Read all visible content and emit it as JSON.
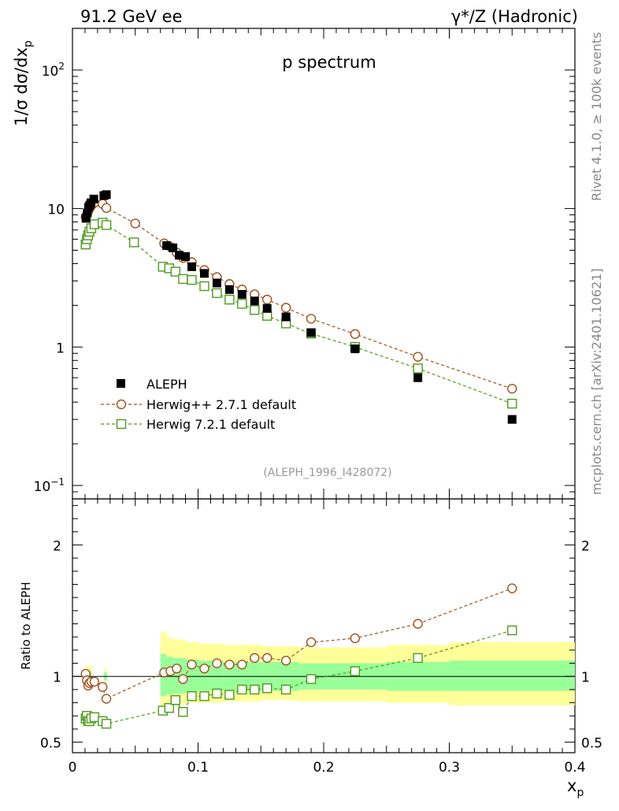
{
  "header": {
    "left": "91.2 GeV ee",
    "right": "γ*/Z (Hadronic)"
  },
  "side_texts": {
    "rivet": "Rivet 4.1.0, ≥ 100k events",
    "mcplots": "mcplots.cern.ch [arXiv:2401.10621]"
  },
  "chart_data": [
    {
      "type": "scatter",
      "title": "p spectrum",
      "xlabel": "x_p",
      "ylabel": "1/σ  dσ/dx_p",
      "yscale": "log",
      "xlim": [
        0,
        0.4
      ],
      "ylim": [
        0.08,
        200
      ],
      "y_tick_labels": [
        "10^-1",
        "1",
        "10",
        "10^2"
      ],
      "watermark": "(ALEPH_1996_I428072)",
      "legend_position": "lower-left",
      "series": [
        {
          "name": "ALEPH",
          "marker": "filled-square",
          "color": "#000000",
          "x": [
            0.0108,
            0.0118,
            0.0128,
            0.0138,
            0.0148,
            0.017,
            0.025,
            0.027,
            0.075,
            0.08,
            0.085,
            0.09,
            0.095,
            0.105,
            0.115,
            0.125,
            0.135,
            0.145,
            0.155,
            0.17,
            0.19,
            0.225,
            0.275,
            0.35
          ],
          "y": [
            8.5,
            9.3,
            10.2,
            10.6,
            11.0,
            11.7,
            12.4,
            12.6,
            5.4,
            5.2,
            4.6,
            4.5,
            3.8,
            3.4,
            2.9,
            2.6,
            2.4,
            2.15,
            1.9,
            1.65,
            1.27,
            0.97,
            0.6,
            0.3
          ]
        },
        {
          "name": "Herwig++ 2.7.1 default",
          "marker": "open-circle",
          "color": "#a0521a",
          "x": [
            0.0105,
            0.0115,
            0.0125,
            0.0135,
            0.015,
            0.0175,
            0.024,
            0.027,
            0.05,
            0.073,
            0.078,
            0.083,
            0.088,
            0.095,
            0.105,
            0.115,
            0.125,
            0.135,
            0.145,
            0.155,
            0.17,
            0.19,
            0.225,
            0.275,
            0.35
          ],
          "y": [
            8.7,
            9.0,
            9.5,
            10.0,
            10.5,
            11.0,
            10.8,
            10.1,
            7.8,
            5.6,
            5.3,
            4.8,
            4.4,
            4.1,
            3.6,
            3.2,
            2.85,
            2.6,
            2.4,
            2.2,
            1.92,
            1.6,
            1.24,
            0.85,
            0.5
          ]
        },
        {
          "name": "Herwig 7.2.1 default",
          "marker": "open-square",
          "color": "#4d9a1a",
          "x": [
            0.0105,
            0.0115,
            0.0125,
            0.0135,
            0.015,
            0.0175,
            0.024,
            0.027,
            0.049,
            0.072,
            0.077,
            0.082,
            0.088,
            0.095,
            0.105,
            0.115,
            0.125,
            0.135,
            0.145,
            0.155,
            0.17,
            0.19,
            0.225,
            0.275,
            0.35
          ],
          "y": [
            5.5,
            6.0,
            6.4,
            6.8,
            7.2,
            7.7,
            7.9,
            7.6,
            5.7,
            3.8,
            3.7,
            3.5,
            3.1,
            3.05,
            2.75,
            2.45,
            2.2,
            2.05,
            1.85,
            1.68,
            1.48,
            1.25,
            1.0,
            0.7,
            0.39
          ]
        }
      ]
    },
    {
      "type": "scatter",
      "title": "",
      "xlabel": "x_p",
      "ylabel": "Ratio to ALEPH",
      "xlim": [
        0,
        0.4
      ],
      "ylim": [
        0.42,
        2.35
      ],
      "x_tick_labels": [
        "0",
        "0.1",
        "0.2",
        "0.3",
        "0.4"
      ],
      "y_tick_labels": [
        "0.5",
        "1",
        "2"
      ],
      "uncertainty_bands": [
        {
          "x0": 0.0105,
          "x1": 0.0155,
          "inner": [
            0.96,
            1.04
          ],
          "outer": [
            0.92,
            1.08
          ]
        },
        {
          "x0": 0.025,
          "x1": 0.0275,
          "inner": [
            0.97,
            1.03
          ],
          "outer": [
            0.94,
            1.06
          ]
        },
        {
          "x0": 0.07,
          "x1": 0.075,
          "inner": [
            0.85,
            1.17
          ],
          "outer": [
            0.74,
            1.34
          ]
        },
        {
          "x0": 0.075,
          "x1": 0.08,
          "inner": [
            0.86,
            1.15
          ],
          "outer": [
            0.76,
            1.3
          ]
        },
        {
          "x0": 0.08,
          "x1": 0.09,
          "inner": [
            0.87,
            1.14
          ],
          "outer": [
            0.79,
            1.28
          ]
        },
        {
          "x0": 0.09,
          "x1": 0.1,
          "inner": [
            0.88,
            1.13
          ],
          "outer": [
            0.8,
            1.26
          ]
        },
        {
          "x0": 0.1,
          "x1": 0.12,
          "inner": [
            0.89,
            1.12
          ],
          "outer": [
            0.8,
            1.25
          ]
        },
        {
          "x0": 0.12,
          "x1": 0.15,
          "inner": [
            0.89,
            1.11
          ],
          "outer": [
            0.81,
            1.24
          ]
        },
        {
          "x0": 0.15,
          "x1": 0.18,
          "inner": [
            0.89,
            1.11
          ],
          "outer": [
            0.82,
            1.23
          ]
        },
        {
          "x0": 0.18,
          "x1": 0.25,
          "inner": [
            0.9,
            1.1
          ],
          "outer": [
            0.81,
            1.22
          ]
        },
        {
          "x0": 0.25,
          "x1": 0.3,
          "inner": [
            0.89,
            1.11
          ],
          "outer": [
            0.8,
            1.24
          ]
        },
        {
          "x0": 0.3,
          "x1": 0.4,
          "inner": [
            0.89,
            1.12
          ],
          "outer": [
            0.78,
            1.26
          ]
        }
      ],
      "reference_line": 1,
      "series": [
        {
          "name": "Herwig++ 2.7.1 default",
          "marker": "open-circle",
          "color": "#a0521a",
          "x": [
            0.0105,
            0.0115,
            0.0125,
            0.0135,
            0.015,
            0.0175,
            0.024,
            0.027,
            0.073,
            0.078,
            0.083,
            0.088,
            0.095,
            0.105,
            0.115,
            0.125,
            0.135,
            0.145,
            0.155,
            0.17,
            0.19,
            0.225,
            0.275,
            0.35
          ],
          "y": [
            1.02,
            0.97,
            0.93,
            0.95,
            0.96,
            0.96,
            0.92,
            0.83,
            1.03,
            1.04,
            1.06,
            0.98,
            1.09,
            1.06,
            1.1,
            1.09,
            1.09,
            1.14,
            1.14,
            1.12,
            1.26,
            1.29,
            1.4,
            1.67
          ]
        },
        {
          "name": "Herwig 7.2.1 default",
          "marker": "open-square",
          "color": "#4d9a1a",
          "x": [
            0.0105,
            0.0115,
            0.0125,
            0.0135,
            0.015,
            0.0175,
            0.024,
            0.027,
            0.072,
            0.077,
            0.082,
            0.088,
            0.095,
            0.105,
            0.115,
            0.125,
            0.135,
            0.145,
            0.155,
            0.17,
            0.19,
            0.225,
            0.275,
            0.35
          ],
          "y": [
            0.68,
            0.7,
            0.66,
            0.66,
            0.68,
            0.69,
            0.66,
            0.64,
            0.74,
            0.76,
            0.82,
            0.73,
            0.85,
            0.85,
            0.87,
            0.86,
            0.9,
            0.9,
            0.91,
            0.9,
            0.98,
            1.04,
            1.14,
            1.35
          ]
        }
      ]
    }
  ]
}
